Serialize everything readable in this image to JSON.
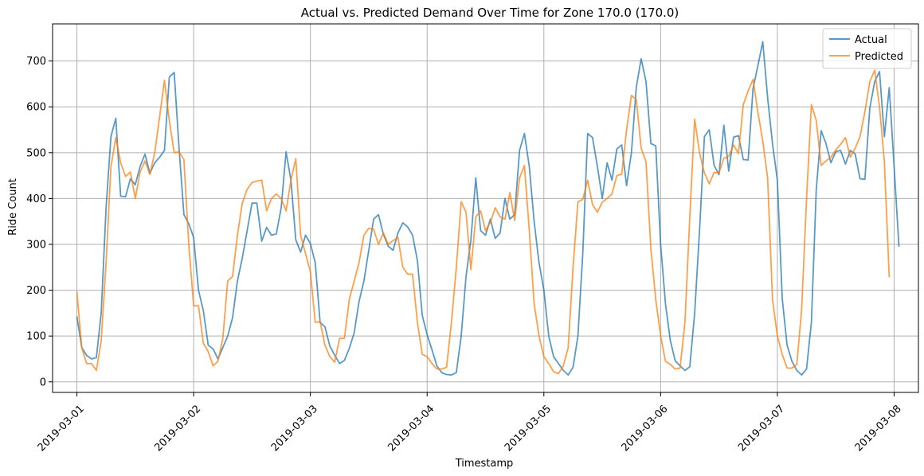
{
  "chart_data": {
    "type": "line",
    "title": "Actual vs. Predicted Demand Over Time for Zone 170.0 (170.0)",
    "xlabel": "Timestamp",
    "ylabel": "Ride Count",
    "x_ticks": [
      "2019-03-01",
      "2019-03-02",
      "2019-03-03",
      "2019-03-04",
      "2019-03-05",
      "2019-03-06",
      "2019-03-07",
      "2019-03-08"
    ],
    "y_ticks": [
      0,
      100,
      200,
      300,
      400,
      500,
      600,
      700
    ],
    "xlim": [
      "2019-02-28T19:00",
      "2019-03-08T05:00"
    ],
    "ylim": [
      -23,
      781
    ],
    "x_resolution": "hourly",
    "x_start": "2019-03-01T00:00",
    "grid": true,
    "legend": "top-right",
    "colors": {
      "actual": "#1f77b4",
      "predicted": "#ff7f0e"
    },
    "series": [
      {
        "name": "Actual",
        "values": [
          143,
          75,
          58,
          50,
          53,
          150,
          380,
          535,
          575,
          405,
          404,
          443,
          430,
          470,
          497,
          455,
          478,
          490,
          505,
          665,
          675,
          510,
          365,
          345,
          315,
          200,
          155,
          80,
          72,
          50,
          75,
          100,
          140,
          220,
          270,
          330,
          390,
          390,
          307,
          337,
          320,
          323,
          380,
          502,
          440,
          310,
          283,
          320,
          302,
          260,
          130,
          120,
          78,
          58,
          40,
          47,
          73,
          107,
          175,
          220,
          287,
          355,
          365,
          322,
          296,
          287,
          325,
          347,
          338,
          320,
          265,
          145,
          103,
          70,
          35,
          20,
          16,
          15,
          20,
          100,
          230,
          310,
          445,
          330,
          320,
          355,
          313,
          325,
          400,
          355,
          365,
          505,
          542,
          470,
          350,
          260,
          200,
          100,
          55,
          40,
          25,
          15,
          32,
          100,
          280,
          542,
          533,
          470,
          400,
          478,
          440,
          508,
          517,
          428,
          500,
          643,
          705,
          655,
          520,
          515,
          300,
          170,
          90,
          46,
          35,
          25,
          33,
          150,
          330,
          535,
          550,
          472,
          452,
          560,
          460,
          534,
          537,
          485,
          484,
          640,
          690,
          742,
          620,
          520,
          440,
          182,
          80,
          45,
          25,
          15,
          28,
          130,
          420,
          548,
          520,
          478,
          502,
          505,
          475,
          505,
          497,
          443,
          442,
          597,
          655,
          677,
          535,
          642,
          470,
          295
        ],
        "mark": "circle"
      },
      {
        "name": "Predicted",
        "values": [
          197,
          75,
          40,
          40,
          25,
          90,
          260,
          470,
          533,
          478,
          448,
          458,
          400,
          458,
          482,
          453,
          500,
          578,
          658,
          570,
          500,
          502,
          485,
          300,
          166,
          166,
          84,
          66,
          35,
          45,
          95,
          220,
          230,
          320,
          390,
          420,
          435,
          438,
          440,
          373,
          400,
          410,
          400,
          373,
          440,
          487,
          320,
          280,
          240,
          130,
          131,
          80,
          55,
          43,
          95,
          95,
          180,
          220,
          260,
          320,
          335,
          333,
          300,
          325,
          300,
          308,
          315,
          250,
          235,
          235,
          130,
          60,
          55,
          40,
          28,
          28,
          32,
          130,
          250,
          393,
          370,
          245,
          360,
          373,
          330,
          348,
          380,
          360,
          355,
          413,
          352,
          445,
          472,
          330,
          170,
          100,
          55,
          40,
          22,
          18,
          35,
          75,
          250,
          393,
          398,
          440,
          387,
          370,
          392,
          400,
          410,
          450,
          453,
          550,
          625,
          616,
          510,
          480,
          290,
          180,
          100,
          45,
          38,
          28,
          30,
          130,
          360,
          573,
          500,
          456,
          432,
          457,
          456,
          488,
          492,
          517,
          498,
          605,
          635,
          660,
          588,
          525,
          445,
          180,
          100,
          60,
          30,
          30,
          38,
          160,
          400,
          605,
          570,
          472,
          482,
          490,
          506,
          518,
          533,
          490,
          510,
          535,
          590,
          655,
          680,
          600,
          480,
          228
        ],
        "mark": "square"
      }
    ]
  }
}
